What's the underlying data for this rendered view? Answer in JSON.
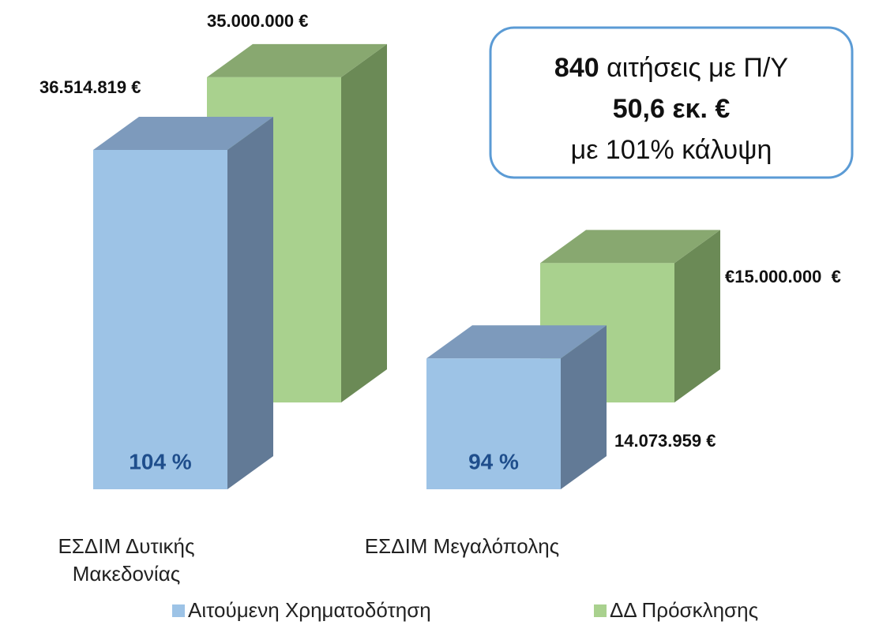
{
  "chart_data": {
    "type": "bar3d",
    "categories": [
      "ΕΣΔΙΜ Δυτικής Μακεδονίας",
      "ΕΣΔΙΜ Μεγαλόπολης"
    ],
    "series": [
      {
        "name": "Αιτούμενη Χρηματοδότηση",
        "color": "#9dc3e6",
        "top_color": "#7d9abc",
        "side_color": "#627a96",
        "values": [
          36514819,
          14073959
        ],
        "value_labels": [
          "36.514.819 €",
          "14.073.959 €"
        ]
      },
      {
        "name": "ΔΔ Πρόσκλησης",
        "color": "#a9d18e",
        "top_color": "#88a870",
        "side_color": "#6b8a56",
        "values": [
          35000000,
          15000000
        ],
        "value_labels": [
          "35.000.000 €",
          "€15.000.000  €"
        ]
      }
    ],
    "coverage_labels": [
      "104 %",
      "94 %"
    ],
    "info_box": {
      "count": "840",
      "count_text": " αιτήσεις με Π/Υ",
      "amount": "50,6 εκ. €",
      "coverage": "με 101% κάλυψη"
    }
  }
}
